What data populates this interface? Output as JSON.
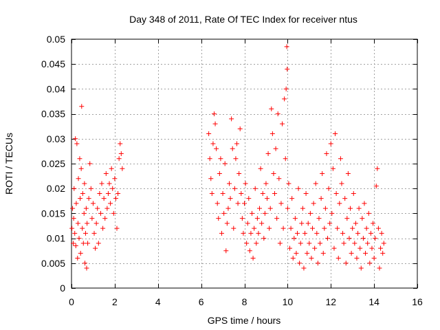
{
  "chart_data": {
    "type": "scatter",
    "title": "Day 348 of 2011, Rate Of TEC Index for receiver ntus",
    "xlabel": "GPS time / hours",
    "ylabel": "ROTI / TECUs",
    "xlim": [
      0,
      16
    ],
    "ylim": [
      0,
      0.05
    ],
    "x_ticks": [
      0,
      2,
      4,
      6,
      8,
      10,
      12,
      14,
      16
    ],
    "x_tick_labels": [
      "0",
      "2",
      "4",
      "6",
      "8",
      "10",
      "12",
      "14",
      "16"
    ],
    "y_ticks": [
      0,
      0.005,
      0.01,
      0.015,
      0.02,
      0.025,
      0.03,
      0.035,
      0.04,
      0.045,
      0.05
    ],
    "y_tick_labels": [
      "0",
      "0.005",
      "0.01",
      "0.015",
      "0.02",
      "0.025",
      "0.03",
      "0.035",
      "0.04",
      "0.045",
      "0.05"
    ],
    "grid": true,
    "marker": "+",
    "color": "#ff0000",
    "series": [
      {
        "name": "ROTI",
        "points": [
          [
            0.02,
            0.012
          ],
          [
            0.05,
            0.016
          ],
          [
            0.08,
            0.009
          ],
          [
            0.1,
            0.014
          ],
          [
            0.12,
            0.02
          ],
          [
            0.15,
            0.011
          ],
          [
            0.18,
            0.03
          ],
          [
            0.2,
            0.0085
          ],
          [
            0.22,
            0.017
          ],
          [
            0.25,
            0.029
          ],
          [
            0.28,
            0.006
          ],
          [
            0.3,
            0.013
          ],
          [
            0.32,
            0.022
          ],
          [
            0.35,
            0.01
          ],
          [
            0.38,
            0.026
          ],
          [
            0.4,
            0.018
          ],
          [
            0.42,
            0.007
          ],
          [
            0.45,
            0.024
          ],
          [
            0.47,
            0.0365
          ],
          [
            0.5,
            0.012
          ],
          [
            0.52,
            0.019
          ],
          [
            0.55,
            0.009
          ],
          [
            0.58,
            0.015
          ],
          [
            0.6,
            0.021
          ],
          [
            0.62,
            0.005
          ],
          [
            0.65,
            0.011
          ],
          [
            0.68,
            0.016
          ],
          [
            0.7,
            0.004
          ],
          [
            0.72,
            0.013
          ],
          [
            0.75,
            0.009
          ],
          [
            0.8,
            0.018
          ],
          [
            0.85,
            0.025
          ],
          [
            0.9,
            0.02
          ],
          [
            0.95,
            0.014
          ],
          [
            1.0,
            0.017
          ],
          [
            1.05,
            0.011
          ],
          [
            1.1,
            0.008
          ],
          [
            1.15,
            0.013
          ],
          [
            1.2,
            0.016
          ],
          [
            1.25,
            0.009
          ],
          [
            1.3,
            0.019
          ],
          [
            1.35,
            0.015
          ],
          [
            1.4,
            0.021
          ],
          [
            1.45,
            0.012
          ],
          [
            1.5,
            0.018
          ],
          [
            1.55,
            0.014
          ],
          [
            1.6,
            0.023
          ],
          [
            1.65,
            0.016
          ],
          [
            1.7,
            0.019
          ],
          [
            1.75,
            0.021
          ],
          [
            1.8,
            0.017
          ],
          [
            1.85,
            0.024
          ],
          [
            1.9,
            0.02
          ],
          [
            1.95,
            0.015
          ],
          [
            2.0,
            0.022
          ],
          [
            2.05,
            0.018
          ],
          [
            2.1,
            0.012
          ],
          [
            2.15,
            0.019
          ],
          [
            2.2,
            0.026
          ],
          [
            2.25,
            0.029
          ],
          [
            2.3,
            0.027
          ],
          [
            2.35,
            0.024
          ],
          [
            6.35,
            0.031
          ],
          [
            6.4,
            0.026
          ],
          [
            6.45,
            0.022
          ],
          [
            6.5,
            0.019
          ],
          [
            6.55,
            0.029
          ],
          [
            6.6,
            0.035
          ],
          [
            6.65,
            0.033
          ],
          [
            6.7,
            0.028
          ],
          [
            6.75,
            0.017
          ],
          [
            6.8,
            0.014
          ],
          [
            6.85,
            0.023
          ],
          [
            6.9,
            0.026
          ],
          [
            6.95,
            0.011
          ],
          [
            7.0,
            0.019
          ],
          [
            7.05,
            0.015
          ],
          [
            7.1,
            0.025
          ],
          [
            7.15,
            0.0075
          ],
          [
            7.2,
            0.013
          ],
          [
            7.25,
            0.016
          ],
          [
            7.3,
            0.021
          ],
          [
            7.35,
            0.018
          ],
          [
            7.4,
            0.034
          ],
          [
            7.45,
            0.028
          ],
          [
            7.5,
            0.012
          ],
          [
            7.55,
            0.02
          ],
          [
            7.6,
            0.026
          ],
          [
            7.65,
            0.029
          ],
          [
            7.7,
            0.017
          ],
          [
            7.75,
            0.023
          ],
          [
            7.8,
            0.032
          ],
          [
            7.85,
            0.019
          ],
          [
            7.9,
            0.014
          ],
          [
            7.95,
            0.011
          ],
          [
            8.0,
            0.017
          ],
          [
            8.05,
            0.021
          ],
          [
            8.1,
            0.009
          ],
          [
            8.15,
            0.013
          ],
          [
            8.2,
            0.018
          ],
          [
            8.25,
            0.0075
          ],
          [
            8.3,
            0.011
          ],
          [
            8.35,
            0.015
          ],
          [
            8.4,
            0.006
          ],
          [
            8.45,
            0.012
          ],
          [
            8.5,
            0.02
          ],
          [
            8.55,
            0.009
          ],
          [
            8.6,
            0.014
          ],
          [
            8.65,
            0.011
          ],
          [
            8.7,
            0.016
          ],
          [
            8.75,
            0.024
          ],
          [
            8.8,
            0.013
          ],
          [
            8.85,
            0.019
          ],
          [
            8.9,
            0.01
          ],
          [
            8.95,
            0.015
          ],
          [
            9.0,
            0.021
          ],
          [
            9.05,
            0.018
          ],
          [
            9.1,
            0.027
          ],
          [
            9.15,
            0.012
          ],
          [
            9.2,
            0.016
          ],
          [
            9.25,
            0.036
          ],
          [
            9.3,
            0.031
          ],
          [
            9.35,
            0.023
          ],
          [
            9.4,
            0.019
          ],
          [
            9.45,
            0.028
          ],
          [
            9.5,
            0.014
          ],
          [
            9.55,
            0.035
          ],
          [
            9.6,
            0.022
          ],
          [
            9.65,
            0.009
          ],
          [
            9.7,
            0.017
          ],
          [
            9.75,
            0.033
          ],
          [
            9.8,
            0.012
          ],
          [
            9.85,
            0.038
          ],
          [
            9.9,
            0.026
          ],
          [
            9.93,
            0.04
          ],
          [
            9.96,
            0.0485
          ],
          [
            9.98,
            0.044
          ],
          [
            10.0,
            0.016
          ],
          [
            10.05,
            0.021
          ],
          [
            10.1,
            0.008
          ],
          [
            10.15,
            0.012
          ],
          [
            10.2,
            0.018
          ],
          [
            10.25,
            0.006
          ],
          [
            10.3,
            0.01
          ],
          [
            10.35,
            0.014
          ],
          [
            10.4,
            0.007
          ],
          [
            10.45,
            0.011
          ],
          [
            10.5,
            0.02
          ],
          [
            10.55,
            0.005
          ],
          [
            10.6,
            0.009
          ],
          [
            10.65,
            0.013
          ],
          [
            10.7,
            0.016
          ],
          [
            10.75,
            0.004
          ],
          [
            10.8,
            0.011
          ],
          [
            10.85,
            0.019
          ],
          [
            10.9,
            0.007
          ],
          [
            10.95,
            0.013
          ],
          [
            11.0,
            0.009
          ],
          [
            11.05,
            0.015
          ],
          [
            11.1,
            0.006
          ],
          [
            11.15,
            0.012
          ],
          [
            11.2,
            0.017
          ],
          [
            11.25,
            0.008
          ],
          [
            11.3,
            0.021
          ],
          [
            11.35,
            0.011
          ],
          [
            11.4,
            0.005
          ],
          [
            11.45,
            0.014
          ],
          [
            11.5,
            0.009
          ],
          [
            11.55,
            0.018
          ],
          [
            11.6,
            0.023
          ],
          [
            11.65,
            0.007
          ],
          [
            11.7,
            0.012
          ],
          [
            11.75,
            0.016
          ],
          [
            11.8,
            0.027
          ],
          [
            11.85,
            0.01
          ],
          [
            11.9,
            0.02
          ],
          [
            11.95,
            0.013
          ],
          [
            12.0,
            0.029
          ],
          [
            12.05,
            0.015
          ],
          [
            12.1,
            0.024
          ],
          [
            12.15,
            0.008
          ],
          [
            12.2,
            0.031
          ],
          [
            12.25,
            0.019
          ],
          [
            12.3,
            0.012
          ],
          [
            12.35,
            0.006
          ],
          [
            12.4,
            0.017
          ],
          [
            12.45,
            0.026
          ],
          [
            12.5,
            0.021
          ],
          [
            12.55,
            0.011
          ],
          [
            12.6,
            0.009
          ],
          [
            12.65,
            0.018
          ],
          [
            12.7,
            0.005
          ],
          [
            12.75,
            0.014
          ],
          [
            12.8,
            0.023
          ],
          [
            12.85,
            0.01
          ],
          [
            12.9,
            0.016
          ],
          [
            12.95,
            0.007
          ],
          [
            13.0,
            0.012
          ],
          [
            13.05,
            0.019
          ],
          [
            13.1,
            0.009
          ],
          [
            13.15,
            0.013
          ],
          [
            13.2,
            0.006
          ],
          [
            13.25,
            0.011
          ],
          [
            13.3,
            0.016
          ],
          [
            13.35,
            0.008
          ],
          [
            13.4,
            0.004
          ],
          [
            13.45,
            0.014
          ],
          [
            13.5,
            0.01
          ],
          [
            13.55,
            0.017
          ],
          [
            13.6,
            0.007
          ],
          [
            13.65,
            0.012
          ],
          [
            13.7,
            0.009
          ],
          [
            13.75,
            0.015
          ],
          [
            13.8,
            0.005
          ],
          [
            13.85,
            0.011
          ],
          [
            13.9,
            0.008
          ],
          [
            13.95,
            0.013
          ],
          [
            14.0,
            0.006
          ],
          [
            14.05,
            0.01
          ],
          [
            14.1,
            0.0205
          ],
          [
            14.15,
            0.024
          ],
          [
            14.2,
            0.012
          ],
          [
            14.25,
            0.004
          ],
          [
            14.3,
            0.008
          ],
          [
            14.35,
            0.011
          ],
          [
            14.4,
            0.007
          ],
          [
            14.45,
            0.009
          ]
        ]
      }
    ]
  }
}
